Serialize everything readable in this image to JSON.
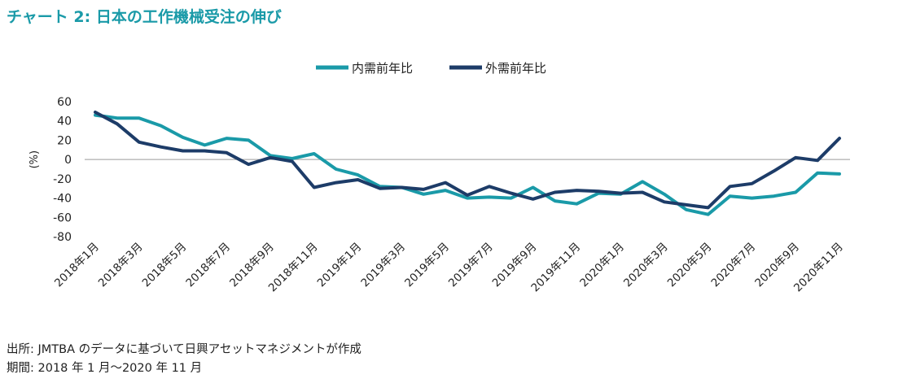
{
  "title": "チャート 2: 日本の工作機械受注の伸び",
  "footer": {
    "source": "出所: JMTBA のデータに基づいて日興アセットマネジメントが作成",
    "period": "期間: 2018 年 1 月〜2020 年 11 月"
  },
  "chart_data": {
    "type": "line",
    "title": "チャート 2: 日本の工作機械受注の伸び",
    "ylabel": "(%)",
    "xlabel": "",
    "ylim": [
      -80,
      60
    ],
    "yticks": [
      60,
      40,
      20,
      0,
      -20,
      -40,
      -60,
      -80
    ],
    "grid": false,
    "legend_position": "top-center",
    "x": [
      "2018年1月",
      "2018年2月",
      "2018年3月",
      "2018年4月",
      "2018年5月",
      "2018年6月",
      "2018年7月",
      "2018年8月",
      "2018年9月",
      "2018年10月",
      "2018年11月",
      "2018年12月",
      "2019年1月",
      "2019年2月",
      "2019年3月",
      "2019年4月",
      "2019年5月",
      "2019年6月",
      "2019年7月",
      "2019年8月",
      "2019年9月",
      "2019年10月",
      "2019年11月",
      "2019年12月",
      "2020年1月",
      "2020年2月",
      "2020年3月",
      "2020年4月",
      "2020年5月",
      "2020年6月",
      "2020年7月",
      "2020年8月",
      "2020年9月",
      "2020年10月",
      "2020年11月"
    ],
    "xtick_labels": [
      "2018年1月",
      "2018年3月",
      "2018年5月",
      "2018年7月",
      "2018年9月",
      "2018年11月",
      "2019年1月",
      "2019年3月",
      "2019年5月",
      "2019年7月",
      "2019年9月",
      "2019年11月",
      "2020年1月",
      "2020年3月",
      "2020年5月",
      "2020年7月",
      "2020年9月",
      "2020年11月"
    ],
    "series": [
      {
        "name": "内需前年比",
        "color": "#1a9aa8",
        "values": [
          46,
          43,
          43,
          35,
          23,
          15,
          22,
          20,
          4,
          1,
          6,
          -10,
          -16,
          -28,
          -29,
          -36,
          -32,
          -40,
          -39,
          -40,
          -29,
          -43,
          -46,
          -35,
          -36,
          -23,
          -36,
          -52,
          -57,
          -38,
          -40,
          -38,
          -34,
          -14,
          -15
        ]
      },
      {
        "name": "外需前年比",
        "color": "#1d3c68",
        "values": [
          49,
          37,
          18,
          13,
          9,
          9,
          7,
          -5,
          2,
          -2,
          -29,
          -24,
          -21,
          -30,
          -29,
          -31,
          -24,
          -37,
          -28,
          -35,
          -41,
          -34,
          -32,
          -33,
          -35,
          -34,
          -44,
          -47,
          -50,
          -28,
          -25,
          -12,
          2,
          -1,
          22
        ]
      }
    ]
  }
}
